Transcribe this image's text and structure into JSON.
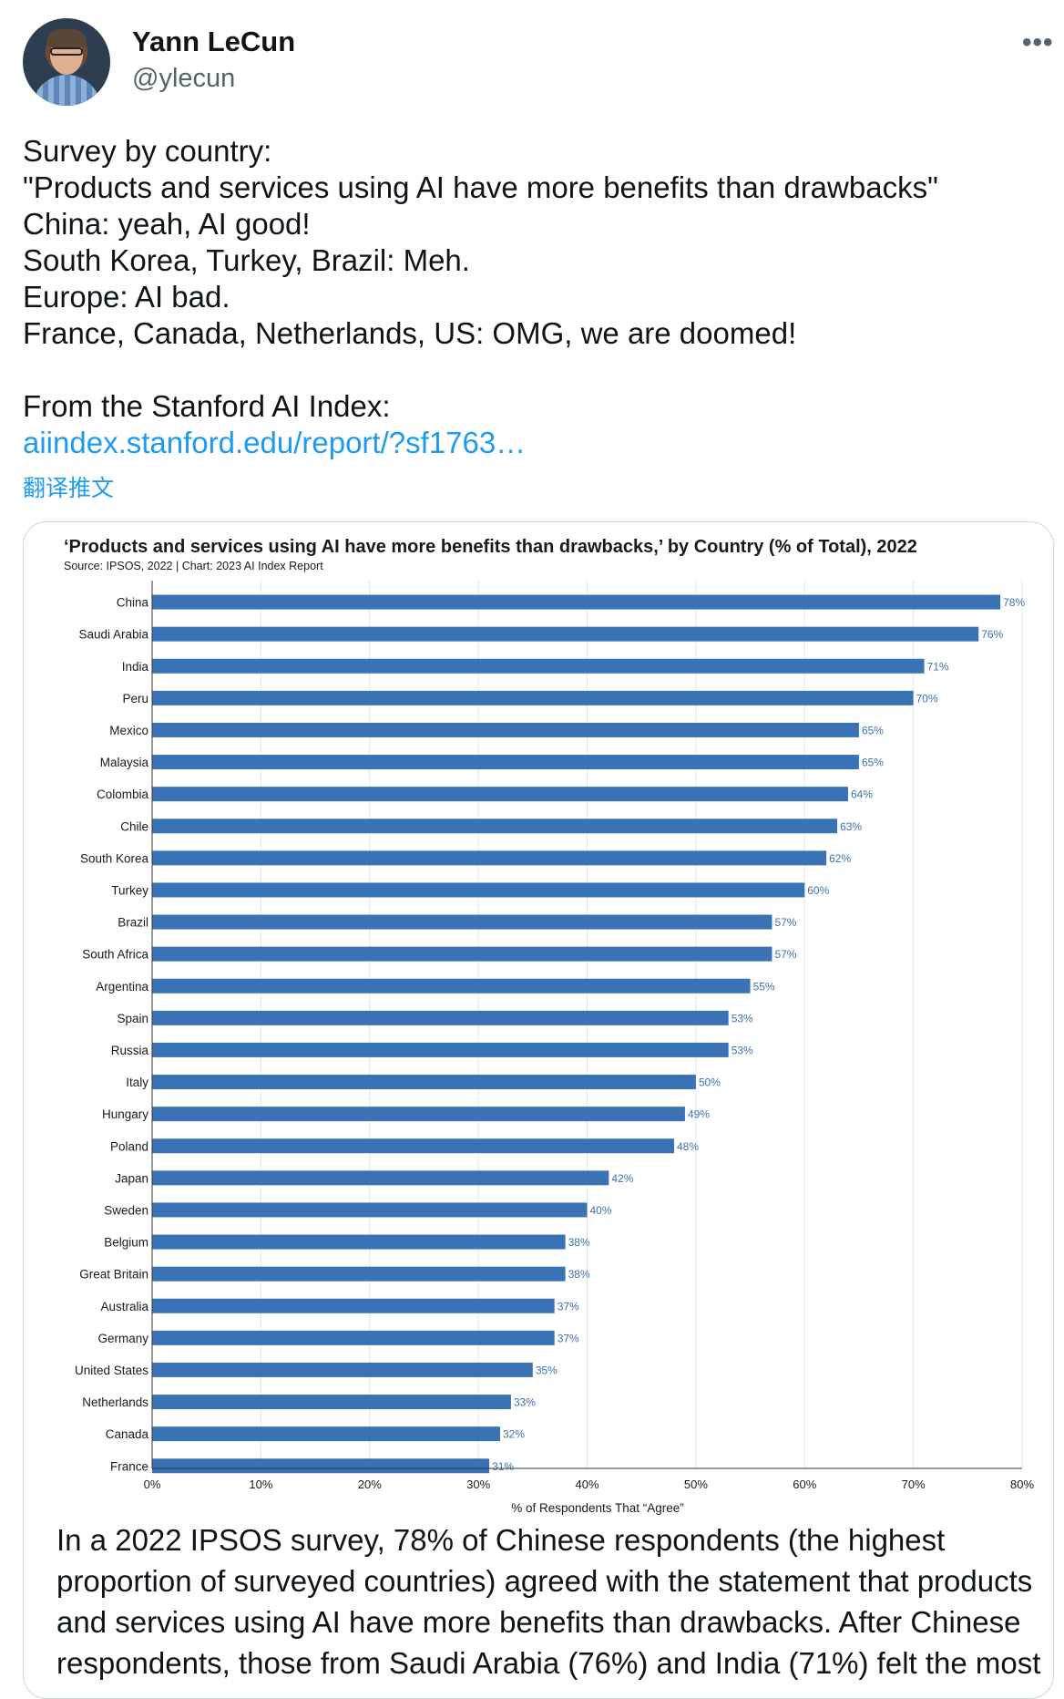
{
  "tweet": {
    "author_name": "Yann LeCun",
    "handle": "@ylecun",
    "more_icon": "ellipsis-icon",
    "lines": [
      "Survey by country:",
      "\"Products and services using AI have more benefits than drawbacks\"",
      "China: yeah, AI good!",
      "South Korea, Turkey, Brazil: Meh.",
      "Europe: AI bad.",
      "France, Canada, Netherlands, US: OMG, we are doomed!"
    ],
    "source_intro": "From the Stanford AI Index:",
    "link_text": "aiindex.stanford.edu/report/?sf1763…",
    "translate_label": "翻译推文"
  },
  "card": {
    "caption": "In a 2022 IPSOS survey, 78% of Chinese respondents (the highest proportion of surveyed countries) agreed with the statement that products and services using AI have more benefits than drawbacks. After Chinese respondents, those from Saudi Arabia (76%) and India (71%) felt the most"
  },
  "chart_data": {
    "type": "bar",
    "orientation": "horizontal",
    "title": "‘Products and services using AI have more benefits than drawbacks,’ by Country (% of Total), 2022",
    "subtitle": "Source: IPSOS, 2022 | Chart: 2023 AI Index Report",
    "xlabel": "% of Respondents That “Agree”",
    "xlim": [
      0,
      80
    ],
    "xticks": [
      "0%",
      "10%",
      "20%",
      "30%",
      "40%",
      "50%",
      "60%",
      "70%",
      "80%"
    ],
    "grid": true,
    "bar_color": "#3a73b5",
    "label_color": "#3a73b5",
    "categories": [
      "China",
      "Saudi Arabia",
      "India",
      "Peru",
      "Mexico",
      "Malaysia",
      "Colombia",
      "Chile",
      "South Korea",
      "Turkey",
      "Brazil",
      "South Africa",
      "Argentina",
      "Spain",
      "Russia",
      "Italy",
      "Hungary",
      "Poland",
      "Japan",
      "Sweden",
      "Belgium",
      "Great Britain",
      "Australia",
      "Germany",
      "United States",
      "Netherlands",
      "Canada",
      "France"
    ],
    "values": [
      78,
      76,
      71,
      70,
      65,
      65,
      64,
      63,
      62,
      60,
      57,
      57,
      55,
      53,
      53,
      50,
      49,
      48,
      42,
      40,
      38,
      38,
      37,
      37,
      35,
      33,
      32,
      31
    ],
    "value_labels": [
      "78%",
      "76%",
      "71%",
      "70%",
      "65%",
      "65%",
      "64%",
      "63%",
      "62%",
      "60%",
      "57%",
      "57%",
      "55%",
      "53%",
      "53%",
      "50%",
      "49%",
      "48%",
      "42%",
      "40%",
      "38%",
      "38%",
      "37%",
      "37%",
      "35%",
      "33%",
      "32%",
      "31%"
    ]
  }
}
